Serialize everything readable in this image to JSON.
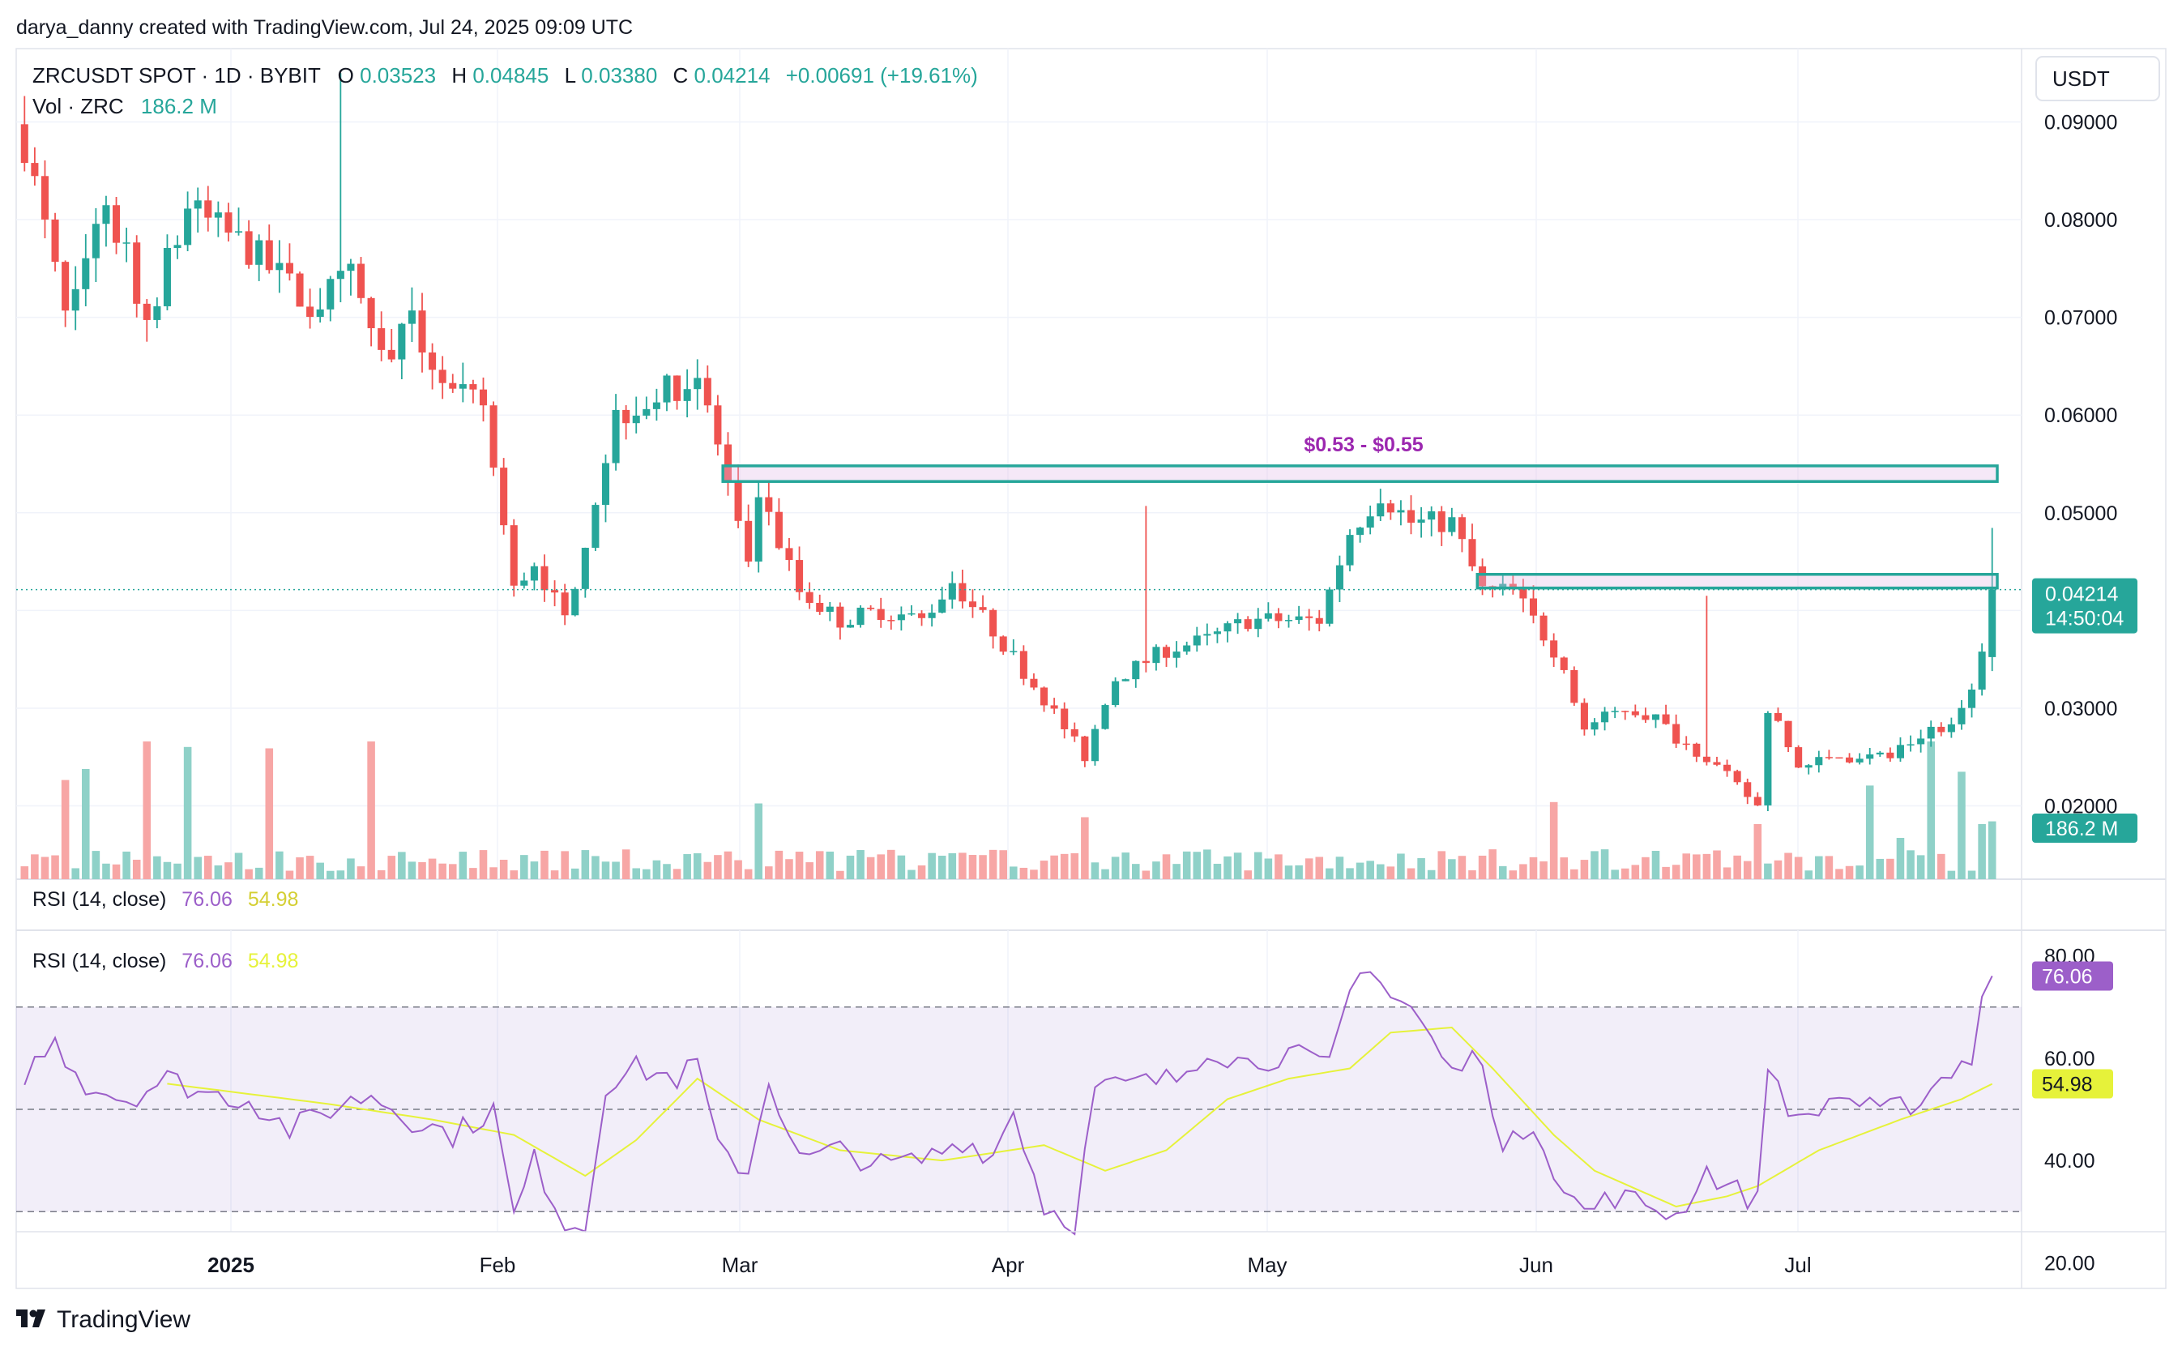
{
  "header": {
    "publisher_line": "darya_danny created with TradingView.com, Jul 24, 2025 09:09 UTC"
  },
  "legend": {
    "symbol": "ZRCUSDT SPOT · 1D · BYBIT",
    "o_label": "O",
    "o_value": "0.03523",
    "h_label": "H",
    "h_value": "0.04845",
    "l_label": "L",
    "l_value": "0.03380",
    "c_label": "C",
    "c_value": "0.04214",
    "change": "+0.00691 (+19.61%)",
    "vol_label": "Vol · ZRC",
    "vol_value": "186.2 M"
  },
  "currency_button": "USDT",
  "price_axis": {
    "ticks": [
      "0.09000",
      "0.08000",
      "0.07000",
      "0.06000",
      "0.05000",
      "0.03000",
      "0.02000"
    ],
    "last_price": "0.04214",
    "countdown": "14:50:04",
    "volume_badge": "186.2 M"
  },
  "annotation": {
    "label": "$0.53 - $0.55",
    "color": "#9c27b0",
    "zone_color": "#26a69a"
  },
  "rsi": {
    "pane_label": "RSI (14, close)",
    "pane_rsi_value": "76.06",
    "pane_ma_value": "54.98",
    "inner_label": "RSI (14, close)",
    "inner_rsi_value": "76.06",
    "inner_ma_value": "54.98",
    "ticks": [
      "80.00",
      "60.00",
      "40.00",
      "20.00"
    ],
    "rsi_badge": "76.06",
    "ma_badge": "54.98",
    "upper_band": 70,
    "middle_band": 50,
    "lower_band": 30,
    "line_color": "#9c5fc9",
    "ma_color": "#e6f23a"
  },
  "time_axis": {
    "labels": [
      "2025",
      "Feb",
      "Mar",
      "Apr",
      "May",
      "Jun",
      "Jul"
    ]
  },
  "brand": {
    "logo_text": "TradingView"
  },
  "colors": {
    "up": "#26a69a",
    "down": "#ef5350",
    "up_volume": "#8fd1c8",
    "down_volume": "#f7a6a5"
  },
  "chart_data": [
    {
      "type": "candlestick",
      "symbol": "ZRCUSDT",
      "interval": "1D",
      "ylim": [
        0.0125,
        0.0975
      ],
      "last_close": 0.04214,
      "anchors": [
        [
          0,
          0.088
        ],
        [
          4,
          0.07
        ],
        [
          8,
          0.082
        ],
        [
          12,
          0.07
        ],
        [
          16,
          0.081
        ],
        [
          22,
          0.077
        ],
        [
          28,
          0.071
        ],
        [
          32,
          0.074
        ],
        [
          35,
          0.066
        ],
        [
          38,
          0.069
        ],
        [
          42,
          0.062
        ],
        [
          45,
          0.061
        ],
        [
          48,
          0.042
        ],
        [
          50,
          0.045
        ],
        [
          53,
          0.039
        ],
        [
          58,
          0.06
        ],
        [
          62,
          0.062
        ],
        [
          66,
          0.064
        ],
        [
          68,
          0.057
        ],
        [
          71,
          0.044
        ],
        [
          72,
          0.052
        ],
        [
          76,
          0.042
        ],
        [
          80,
          0.039
        ],
        [
          84,
          0.04
        ],
        [
          88,
          0.039
        ],
        [
          91,
          0.043
        ],
        [
          95,
          0.038
        ],
        [
          100,
          0.031
        ],
        [
          104,
          0.025
        ],
        [
          107,
          0.033
        ],
        [
          112,
          0.036
        ],
        [
          116,
          0.037
        ],
        [
          120,
          0.039
        ],
        [
          124,
          0.039
        ],
        [
          127,
          0.039
        ],
        [
          130,
          0.048
        ],
        [
          133,
          0.052
        ],
        [
          136,
          0.049
        ],
        [
          140,
          0.049
        ],
        [
          143,
          0.042
        ],
        [
          146,
          0.042
        ],
        [
          150,
          0.036
        ],
        [
          153,
          0.028
        ],
        [
          157,
          0.03
        ],
        [
          160,
          0.029
        ],
        [
          162,
          0.027
        ],
        [
          165,
          0.025
        ],
        [
          168,
          0.022
        ],
        [
          170,
          0.02
        ],
        [
          171,
          0.03
        ],
        [
          174,
          0.024
        ],
        [
          178,
          0.025
        ],
        [
          183,
          0.025
        ],
        [
          187,
          0.028
        ],
        [
          189,
          0.028
        ],
        [
          192,
          0.035
        ],
        [
          193,
          0.04214
        ]
      ],
      "volume_spikes": [
        [
          4,
          72
        ],
        [
          6,
          80
        ],
        [
          12,
          100
        ],
        [
          16,
          96
        ],
        [
          24,
          95
        ],
        [
          34,
          100
        ],
        [
          72,
          55
        ],
        [
          104,
          45
        ],
        [
          150,
          56
        ],
        [
          170,
          40
        ],
        [
          181,
          68
        ],
        [
          184,
          30
        ],
        [
          187,
          100
        ],
        [
          190,
          78
        ],
        [
          192,
          40
        ],
        [
          193,
          42
        ]
      ],
      "annotation_zones": [
        {
          "label": "$0.53 - $0.55",
          "x_from": 69,
          "x_to": 194,
          "y_low": 0.0532,
          "y_high": 0.0548
        },
        {
          "x_from": 143,
          "x_to": 194,
          "y_low": 0.0423,
          "y_high": 0.0437
        }
      ]
    },
    {
      "type": "line",
      "name": "RSI (14, close)",
      "ylim": [
        15,
        85
      ],
      "last_value": 76.06,
      "ma_last_value": 54.98,
      "anchors": [
        [
          0,
          57
        ],
        [
          3,
          63
        ],
        [
          6,
          55
        ],
        [
          10,
          52
        ],
        [
          14,
          56
        ],
        [
          18,
          53
        ],
        [
          22,
          52
        ],
        [
          26,
          46
        ],
        [
          30,
          50
        ],
        [
          34,
          53
        ],
        [
          38,
          48
        ],
        [
          42,
          45
        ],
        [
          46,
          50
        ],
        [
          48,
          29
        ],
        [
          50,
          40
        ],
        [
          53,
          28
        ],
        [
          55,
          27
        ],
        [
          57,
          55
        ],
        [
          60,
          58
        ],
        [
          64,
          56
        ],
        [
          66,
          59
        ],
        [
          68,
          42
        ],
        [
          71,
          38
        ],
        [
          73,
          56
        ],
        [
          76,
          40
        ],
        [
          80,
          42
        ],
        [
          84,
          39
        ],
        [
          88,
          40
        ],
        [
          92,
          44
        ],
        [
          95,
          41
        ],
        [
          97,
          50
        ],
        [
          100,
          31
        ],
        [
          103,
          28
        ],
        [
          105,
          54
        ],
        [
          109,
          55
        ],
        [
          113,
          56
        ],
        [
          116,
          62
        ],
        [
          120,
          59
        ],
        [
          124,
          61
        ],
        [
          128,
          58
        ],
        [
          130,
          73
        ],
        [
          132,
          79
        ],
        [
          134,
          72
        ],
        [
          136,
          70
        ],
        [
          140,
          57
        ],
        [
          143,
          61
        ],
        [
          145,
          41
        ],
        [
          148,
          48
        ],
        [
          151,
          34
        ],
        [
          153,
          30
        ],
        [
          156,
          33
        ],
        [
          160,
          31
        ],
        [
          162,
          29
        ],
        [
          165,
          38
        ],
        [
          167,
          35
        ],
        [
          170,
          32
        ],
        [
          171,
          59
        ],
        [
          174,
          47
        ],
        [
          178,
          53
        ],
        [
          182,
          49
        ],
        [
          186,
          52
        ],
        [
          189,
          58
        ],
        [
          191,
          60
        ],
        [
          192,
          72
        ],
        [
          193,
          76.06
        ]
      ],
      "ma_anchors": [
        [
          0,
          54
        ],
        [
          14,
          55
        ],
        [
          30,
          51
        ],
        [
          40,
          48
        ],
        [
          48,
          45
        ],
        [
          55,
          37
        ],
        [
          60,
          44
        ],
        [
          66,
          56
        ],
        [
          72,
          48
        ],
        [
          80,
          42
        ],
        [
          90,
          40
        ],
        [
          100,
          43
        ],
        [
          106,
          38
        ],
        [
          112,
          42
        ],
        [
          118,
          52
        ],
        [
          124,
          56
        ],
        [
          130,
          58
        ],
        [
          134,
          65
        ],
        [
          140,
          66
        ],
        [
          144,
          58
        ],
        [
          150,
          45
        ],
        [
          154,
          38
        ],
        [
          162,
          31
        ],
        [
          167,
          33
        ],
        [
          170,
          35
        ],
        [
          176,
          42
        ],
        [
          184,
          48
        ],
        [
          190,
          52
        ],
        [
          193,
          54.98
        ]
      ]
    }
  ]
}
